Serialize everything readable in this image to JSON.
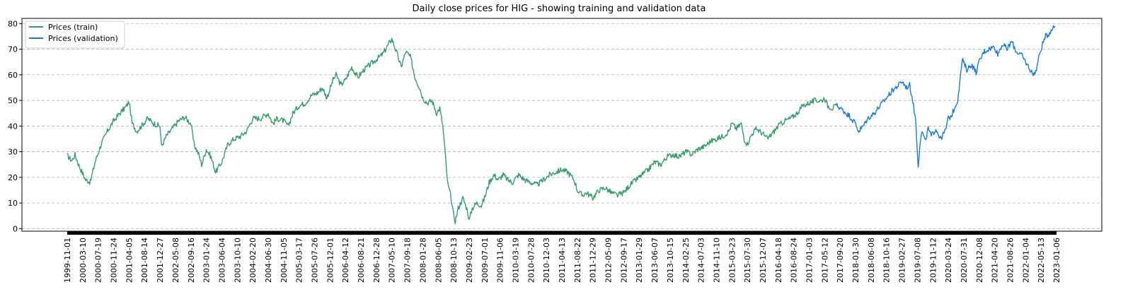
{
  "chart_data": {
    "type": "line",
    "title": "Daily close prices for HIG - showing training and validation data",
    "xlabel": "",
    "ylabel": "",
    "ylim": [
      -1,
      82
    ],
    "yticks": [
      0,
      10,
      20,
      30,
      40,
      50,
      60,
      70,
      80
    ],
    "grid": "y-dashed",
    "legend_position": "top-left",
    "x_tick_labels": [
      "1999-11-01",
      "2000-03-10",
      "2000-07-19",
      "2000-11-24",
      "2001-04-05",
      "2001-08-14",
      "2001-12-27",
      "2002-05-08",
      "2002-09-16",
      "2003-01-24",
      "2003-06-04",
      "2003-10-10",
      "2004-02-20",
      "2004-06-30",
      "2004-11-05",
      "2005-03-17",
      "2005-07-26",
      "2005-12-01",
      "2006-04-12",
      "2006-08-21",
      "2006-12-28",
      "2007-05-10",
      "2007-09-18",
      "2008-01-28",
      "2008-06-05",
      "2008-10-13",
      "2009-02-23",
      "2009-07-01",
      "2009-11-06",
      "2010-03-19",
      "2010-07-28",
      "2010-12-03",
      "2011-04-13",
      "2011-08-22",
      "2011-12-29",
      "2012-05-09",
      "2012-09-17",
      "2013-01-29",
      "2013-06-07",
      "2013-10-15",
      "2014-02-25",
      "2014-07-03",
      "2014-11-10",
      "2015-03-23",
      "2015-07-30",
      "2015-12-07",
      "2016-04-18",
      "2016-08-24",
      "2017-01-03",
      "2017-05-12",
      "2017-09-20",
      "2018-01-30",
      "2018-06-08",
      "2018-10-16",
      "2019-02-27",
      "2019-07-08",
      "2019-11-12",
      "2020-03-24",
      "2020-07-31",
      "2020-12-08",
      "2021-04-20",
      "2021-08-26",
      "2022-01-04",
      "2022-05-13",
      "2023-01-06"
    ],
    "series": [
      {
        "name": "Prices (train)",
        "color": "#3a9a6e",
        "points": [
          [
            0.0,
            28.5
          ],
          [
            0.3,
            26.5
          ],
          [
            0.5,
            28.8
          ],
          [
            0.8,
            24
          ],
          [
            1.2,
            19
          ],
          [
            1.5,
            18.2
          ],
          [
            1.8,
            26
          ],
          [
            2.2,
            33
          ],
          [
            2.6,
            38
          ],
          [
            3.0,
            42
          ],
          [
            3.4,
            45
          ],
          [
            3.8,
            47.5
          ],
          [
            4.0,
            49.5
          ],
          [
            4.2,
            41
          ],
          [
            4.5,
            38
          ],
          [
            4.8,
            40
          ],
          [
            5.2,
            43
          ],
          [
            5.6,
            41
          ],
          [
            6.0,
            40
          ],
          [
            6.1,
            32
          ],
          [
            6.4,
            36
          ],
          [
            6.8,
            39
          ],
          [
            7.2,
            42
          ],
          [
            7.6,
            43.5
          ],
          [
            8.0,
            41
          ],
          [
            8.2,
            33
          ],
          [
            8.5,
            29
          ],
          [
            8.7,
            25
          ],
          [
            9.0,
            31
          ],
          [
            9.3,
            28
          ],
          [
            9.6,
            22
          ],
          [
            10.0,
            26
          ],
          [
            10.4,
            33
          ],
          [
            10.8,
            35
          ],
          [
            11.2,
            36
          ],
          [
            11.6,
            38
          ],
          [
            12.0,
            43
          ],
          [
            12.5,
            43
          ],
          [
            13.0,
            45
          ],
          [
            13.3,
            41
          ],
          [
            13.6,
            43
          ],
          [
            14.0,
            42
          ],
          [
            14.3,
            40
          ],
          [
            14.6,
            45
          ],
          [
            15.0,
            48
          ],
          [
            15.4,
            49
          ],
          [
            15.8,
            52
          ],
          [
            16.2,
            53
          ],
          [
            16.5,
            55
          ],
          [
            16.8,
            51
          ],
          [
            17.2,
            58
          ],
          [
            17.4,
            60
          ],
          [
            17.7,
            56
          ],
          [
            18.0,
            58
          ],
          [
            18.4,
            63
          ],
          [
            18.8,
            59
          ],
          [
            19.2,
            62
          ],
          [
            19.6,
            64
          ],
          [
            20.0,
            66
          ],
          [
            20.4,
            68
          ],
          [
            20.7,
            71
          ],
          [
            21.0,
            74
          ],
          [
            21.3,
            69
          ],
          [
            21.6,
            63
          ],
          [
            21.9,
            69
          ],
          [
            22.2,
            67
          ],
          [
            22.5,
            59
          ],
          [
            22.8,
            55
          ],
          [
            23.0,
            51
          ],
          [
            23.3,
            49
          ],
          [
            23.6,
            50
          ],
          [
            23.9,
            45
          ],
          [
            24.1,
            47
          ],
          [
            24.3,
            40
          ],
          [
            24.5,
            26
          ],
          [
            24.6,
            18
          ],
          [
            24.8,
            13
          ],
          [
            25.0,
            5
          ],
          [
            25.1,
            3
          ],
          [
            25.3,
            8
          ],
          [
            25.6,
            12
          ],
          [
            25.9,
            7
          ],
          [
            26.0,
            3
          ],
          [
            26.2,
            8
          ],
          [
            26.5,
            10
          ],
          [
            26.8,
            9
          ],
          [
            27.0,
            12
          ],
          [
            27.3,
            18
          ],
          [
            27.6,
            21
          ],
          [
            27.9,
            19
          ],
          [
            28.2,
            21
          ],
          [
            28.5,
            19
          ],
          [
            28.8,
            18
          ],
          [
            29.2,
            21
          ],
          [
            29.6,
            19
          ],
          [
            30.0,
            18
          ],
          [
            30.4,
            17
          ],
          [
            30.8,
            19
          ],
          [
            31.2,
            21
          ],
          [
            31.6,
            22
          ],
          [
            32.0,
            23
          ],
          [
            32.4,
            22
          ],
          [
            32.8,
            19
          ],
          [
            33.0,
            15
          ],
          [
            33.3,
            13
          ],
          [
            33.6,
            14
          ],
          [
            34.0,
            12
          ],
          [
            34.4,
            15
          ],
          [
            34.8,
            16
          ],
          [
            35.2,
            14
          ],
          [
            35.6,
            13
          ],
          [
            36.0,
            14
          ],
          [
            36.4,
            17
          ],
          [
            36.8,
            19
          ],
          [
            37.2,
            21
          ],
          [
            37.6,
            23
          ],
          [
            38.0,
            26
          ],
          [
            38.4,
            25
          ],
          [
            38.8,
            28
          ],
          [
            39.2,
            29
          ],
          [
            39.6,
            28
          ],
          [
            40.0,
            30
          ],
          [
            40.4,
            29
          ],
          [
            40.8,
            31
          ],
          [
            41.2,
            32
          ],
          [
            41.6,
            34
          ],
          [
            42.0,
            35
          ],
          [
            42.4,
            36
          ],
          [
            42.8,
            38
          ],
          [
            43.0,
            41
          ],
          [
            43.3,
            39
          ],
          [
            43.6,
            41
          ],
          [
            43.8,
            35
          ],
          [
            44.0,
            33
          ],
          [
            44.3,
            37
          ],
          [
            44.6,
            39
          ],
          [
            45.0,
            37
          ],
          [
            45.3,
            35
          ],
          [
            45.6,
            37
          ],
          [
            46.0,
            40
          ],
          [
            46.4,
            42
          ],
          [
            46.8,
            43
          ],
          [
            47.2,
            45
          ],
          [
            47.6,
            48
          ],
          [
            48.0,
            49
          ],
          [
            48.4,
            50
          ],
          [
            48.8,
            50
          ],
          [
            49.0,
            51
          ],
          [
            49.2,
            48
          ],
          [
            49.5,
            47
          ],
          [
            49.8,
            48
          ]
        ]
      },
      {
        "name": "Prices (validation)",
        "color": "#1f77d4",
        "points": [
          [
            49.8,
            48
          ],
          [
            50.2,
            46
          ],
          [
            50.6,
            44
          ],
          [
            51.0,
            41
          ],
          [
            51.2,
            38
          ],
          [
            51.5,
            40
          ],
          [
            51.8,
            43
          ],
          [
            52.2,
            45
          ],
          [
            52.6,
            48
          ],
          [
            53.0,
            51
          ],
          [
            53.4,
            54
          ],
          [
            53.8,
            56
          ],
          [
            54.0,
            57.5
          ],
          [
            54.3,
            55
          ],
          [
            54.5,
            56
          ],
          [
            54.7,
            50
          ],
          [
            54.9,
            42
          ],
          [
            55.0,
            30
          ],
          [
            55.05,
            24.5
          ],
          [
            55.15,
            32
          ],
          [
            55.3,
            38
          ],
          [
            55.5,
            34
          ],
          [
            55.7,
            39
          ],
          [
            55.9,
            36
          ],
          [
            56.2,
            39
          ],
          [
            56.5,
            35
          ],
          [
            56.8,
            38
          ],
          [
            57.0,
            43
          ],
          [
            57.2,
            44
          ],
          [
            57.4,
            47
          ],
          [
            57.6,
            50
          ],
          [
            57.8,
            60
          ],
          [
            57.9,
            66
          ],
          [
            58.2,
            62
          ],
          [
            58.5,
            64
          ],
          [
            58.8,
            61
          ],
          [
            59.0,
            65
          ],
          [
            59.3,
            69
          ],
          [
            59.6,
            70
          ],
          [
            60.0,
            71
          ],
          [
            60.2,
            68
          ],
          [
            60.5,
            72
          ],
          [
            60.8,
            70
          ],
          [
            61.1,
            73
          ],
          [
            61.4,
            69
          ],
          [
            61.7,
            68
          ],
          [
            62.0,
            65
          ],
          [
            62.3,
            62
          ],
          [
            62.5,
            60
          ],
          [
            62.7,
            62
          ],
          [
            62.9,
            68
          ],
          [
            63.1,
            72
          ],
          [
            63.3,
            75
          ],
          [
            63.5,
            76
          ],
          [
            63.7,
            78
          ],
          [
            63.9,
            79
          ]
        ]
      }
    ]
  }
}
